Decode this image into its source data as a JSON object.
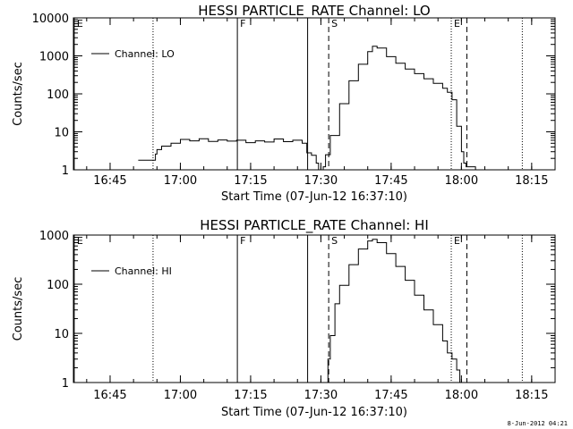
{
  "footer_stamp": "8-Jun-2012 04:21",
  "chart_data": [
    {
      "type": "line",
      "title": "HESSI PARTICLE_RATE Channel: LO",
      "xlabel": "Start Time (07-Jun-12 16:37:10)",
      "ylabel": "Counts/sec",
      "y_scale": "log",
      "ylim": [
        1,
        10000
      ],
      "xlim": [
        "16:37:10",
        "18:20:00"
      ],
      "x_tick_labels": [
        "16:45",
        "17:00",
        "17:15",
        "17:30",
        "17:45",
        "18:00",
        "18:15"
      ],
      "y_tick_labels": [
        "1",
        "10",
        "100",
        "1000",
        "10000"
      ],
      "legend": {
        "placement": "top-left",
        "entries": [
          "Channel: LO"
        ]
      },
      "markers": [
        {
          "time": "16:37:20",
          "label": "E",
          "style": "solid"
        },
        {
          "time": "17:12:10",
          "label": "F",
          "style": "solid"
        },
        {
          "time": "17:27:10",
          "label": "",
          "style": "solid"
        },
        {
          "time": "17:31:40",
          "label": "S",
          "style": "dashed"
        },
        {
          "time": "17:57:50",
          "label": "E",
          "style": "dotted"
        },
        {
          "time": "18:01:10",
          "label": "",
          "style": "dashed"
        },
        {
          "time": "16:54:10",
          "label": "",
          "style": "dotted"
        },
        {
          "time": "18:13:00",
          "label": "",
          "style": "dotted"
        }
      ],
      "series": [
        {
          "x": [
            "16:51:00",
            "16:54:10",
            "16:54:40",
            "16:55:00",
            "16:56:00",
            "16:58:00",
            "17:00:00",
            "17:02:00",
            "17:04:00",
            "17:06:00",
            "17:08:00",
            "17:10:00",
            "17:12:00",
            "17:14:00",
            "17:16:00",
            "17:18:00",
            "17:20:00",
            "17:22:00",
            "17:24:00",
            "17:26:00",
            "17:27:00",
            "17:28:00",
            "17:29:00",
            "17:29:30",
            "17:30:00",
            "17:30:30",
            "17:31:00",
            "17:32:00",
            "17:34:00",
            "17:36:00",
            "17:38:00",
            "17:40:00",
            "17:41:00",
            "17:42:00",
            "17:44:00",
            "17:46:00",
            "17:48:00",
            "17:50:00",
            "17:52:00",
            "17:54:00",
            "17:56:00",
            "17:57:00",
            "17:58:00",
            "17:59:00",
            "18:00:00",
            "18:00:30",
            "18:01:00",
            "18:03:00",
            "18:05:00"
          ],
          "values": [
            1.8,
            1.8,
            2.6,
            3.4,
            4.2,
            5.0,
            6.3,
            5.8,
            6.6,
            5.6,
            6.1,
            5.7,
            6.0,
            5.2,
            5.8,
            5.4,
            6.5,
            5.5,
            6.0,
            5.0,
            2.8,
            2.4,
            1.5,
            1.0,
            1.0,
            1.2,
            2.5,
            8.0,
            55,
            220,
            600,
            1300,
            1800,
            1600,
            950,
            640,
            450,
            340,
            250,
            190,
            140,
            110,
            70,
            14,
            3.0,
            1.5,
            1.2,
            1.0,
            1.0
          ]
        }
      ]
    },
    {
      "type": "line",
      "title": "HESSI PARTICLE_RATE Channel: HI",
      "xlabel": "Start Time (07-Jun-12 16:37:10)",
      "ylabel": "Counts/sec",
      "y_scale": "log",
      "ylim": [
        1,
        1000
      ],
      "xlim": [
        "16:37:10",
        "18:20:00"
      ],
      "x_tick_labels": [
        "16:45",
        "17:00",
        "17:15",
        "17:30",
        "17:45",
        "18:00",
        "18:15"
      ],
      "y_tick_labels": [
        "1",
        "10",
        "100",
        "1000"
      ],
      "legend": {
        "placement": "top-left",
        "entries": [
          "Channel: HI"
        ]
      },
      "markers": [
        {
          "time": "16:37:20",
          "label": "E",
          "style": "solid"
        },
        {
          "time": "17:12:10",
          "label": "F",
          "style": "solid"
        },
        {
          "time": "17:27:10",
          "label": "",
          "style": "solid"
        },
        {
          "time": "17:31:40",
          "label": "S",
          "style": "dashed"
        },
        {
          "time": "17:57:50",
          "label": "E",
          "style": "dotted"
        },
        {
          "time": "18:01:10",
          "label": "",
          "style": "dashed"
        },
        {
          "time": "16:54:10",
          "label": "",
          "style": "dotted"
        },
        {
          "time": "18:13:00",
          "label": "",
          "style": "dotted"
        }
      ],
      "series": [
        {
          "x": [
            "17:30:30",
            "17:31:30",
            "17:32:00",
            "17:33:00",
            "17:34:00",
            "17:36:00",
            "17:38:00",
            "17:40:00",
            "17:41:00",
            "17:42:00",
            "17:44:00",
            "17:46:00",
            "17:48:00",
            "17:50:00",
            "17:52:00",
            "17:54:00",
            "17:56:00",
            "17:57:00",
            "17:58:00",
            "17:59:00",
            "17:59:40"
          ],
          "values": [
            1.0,
            3.0,
            9.0,
            40,
            95,
            250,
            520,
            760,
            820,
            700,
            420,
            230,
            120,
            60,
            30,
            15,
            7.0,
            4.0,
            3.0,
            1.8,
            1.0
          ]
        }
      ]
    }
  ]
}
